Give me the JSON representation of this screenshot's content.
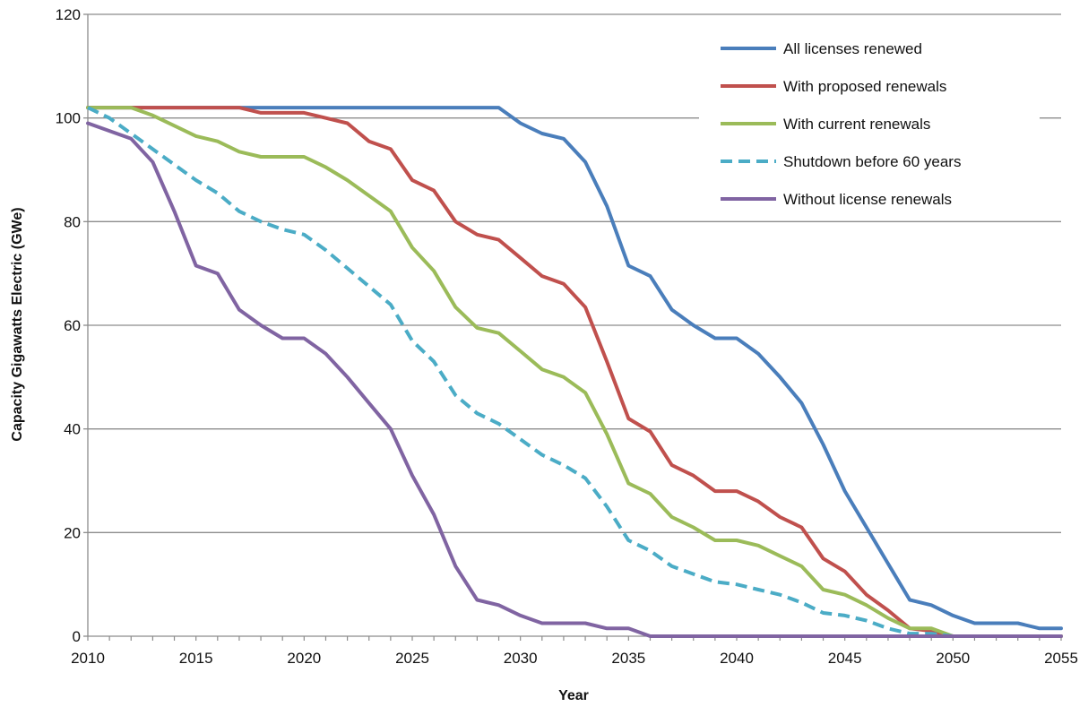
{
  "chart_data": {
    "type": "line",
    "title": "",
    "xlabel": "Year",
    "ylabel": "Capacity Gigawatts Electric (GWe)",
    "xlim": [
      2010,
      2055
    ],
    "ylim": [
      0,
      120
    ],
    "x_ticks": [
      2010,
      2015,
      2020,
      2025,
      2030,
      2035,
      2040,
      2045,
      2050,
      2055
    ],
    "y_ticks": [
      0,
      20,
      40,
      60,
      80,
      100,
      120
    ],
    "grid": "horizontal",
    "legend_position": "top-right",
    "x": [
      2010,
      2011,
      2012,
      2013,
      2014,
      2015,
      2016,
      2017,
      2018,
      2019,
      2020,
      2021,
      2022,
      2023,
      2024,
      2025,
      2026,
      2027,
      2028,
      2029,
      2030,
      2031,
      2032,
      2033,
      2034,
      2035,
      2036,
      2037,
      2038,
      2039,
      2040,
      2041,
      2042,
      2043,
      2044,
      2045,
      2046,
      2047,
      2048,
      2049,
      2050,
      2051,
      2052,
      2053,
      2054,
      2055
    ],
    "series": [
      {
        "name": "All licenses renewed",
        "color": "#4a7ebb",
        "dash": "solid",
        "values": [
          102,
          102,
          102,
          102,
          102,
          102,
          102,
          102,
          102,
          102,
          102,
          102,
          102,
          102,
          102,
          102,
          102,
          102,
          102,
          102,
          99,
          97,
          96,
          91.5,
          83,
          71.5,
          69.5,
          63,
          60,
          57.5,
          57.5,
          54.5,
          50,
          45,
          37,
          28,
          21,
          14,
          7,
          6,
          4,
          2.5,
          2.5,
          2.5,
          1.5,
          1.5
        ]
      },
      {
        "name": "With proposed renewals",
        "color": "#c0504d",
        "dash": "solid",
        "values": [
          102,
          102,
          102,
          102,
          102,
          102,
          102,
          102,
          101,
          101,
          101,
          100,
          99,
          95.5,
          94,
          88,
          86,
          80,
          77.5,
          76.5,
          73,
          69.5,
          68,
          63.5,
          53,
          42,
          39.5,
          33,
          31,
          28,
          28,
          26,
          23,
          21,
          15,
          12.5,
          8,
          5,
          1.5,
          1,
          0,
          0,
          0,
          0,
          0,
          0
        ]
      },
      {
        "name": "With current renewals",
        "color": "#9bbb59",
        "dash": "solid",
        "values": [
          102,
          102,
          102,
          100.5,
          98.5,
          96.5,
          95.5,
          93.5,
          92.5,
          92.5,
          92.5,
          90.5,
          88,
          85,
          82,
          75,
          70.5,
          63.5,
          59.5,
          58.5,
          55,
          51.5,
          50,
          47,
          39,
          29.5,
          27.5,
          23,
          21,
          18.5,
          18.5,
          17.5,
          15.5,
          13.5,
          9,
          8,
          6,
          3.5,
          1.5,
          1.5,
          0,
          0,
          0,
          0,
          0,
          0
        ]
      },
      {
        "name": "Shutdown before 60 years",
        "color": "#4bacc6",
        "dash": "dashed",
        "values": [
          102,
          100,
          97,
          94,
          91,
          88,
          85.5,
          82,
          80,
          78.5,
          77.5,
          74.5,
          71,
          67.5,
          64,
          57,
          53,
          46.5,
          43,
          41,
          38,
          35,
          33,
          30.5,
          25,
          18.5,
          16.5,
          13.5,
          12,
          10.5,
          10,
          9,
          8,
          6.5,
          4.5,
          4,
          3,
          1.5,
          0.5,
          0.5,
          0,
          0,
          0,
          0,
          0,
          0
        ]
      },
      {
        "name": "Without license renewals",
        "color": "#8064a2",
        "dash": "solid",
        "values": [
          99,
          97.5,
          96,
          91.5,
          82,
          71.5,
          70,
          63,
          60,
          57.5,
          57.5,
          54.5,
          50,
          45,
          40,
          31,
          23.5,
          13.5,
          7,
          6,
          4,
          2.5,
          2.5,
          2.5,
          1.5,
          1.5,
          0,
          0,
          0,
          0,
          0,
          0,
          0,
          0,
          0,
          0,
          0,
          0,
          0,
          0,
          0,
          0,
          0,
          0,
          0,
          0
        ]
      }
    ]
  }
}
